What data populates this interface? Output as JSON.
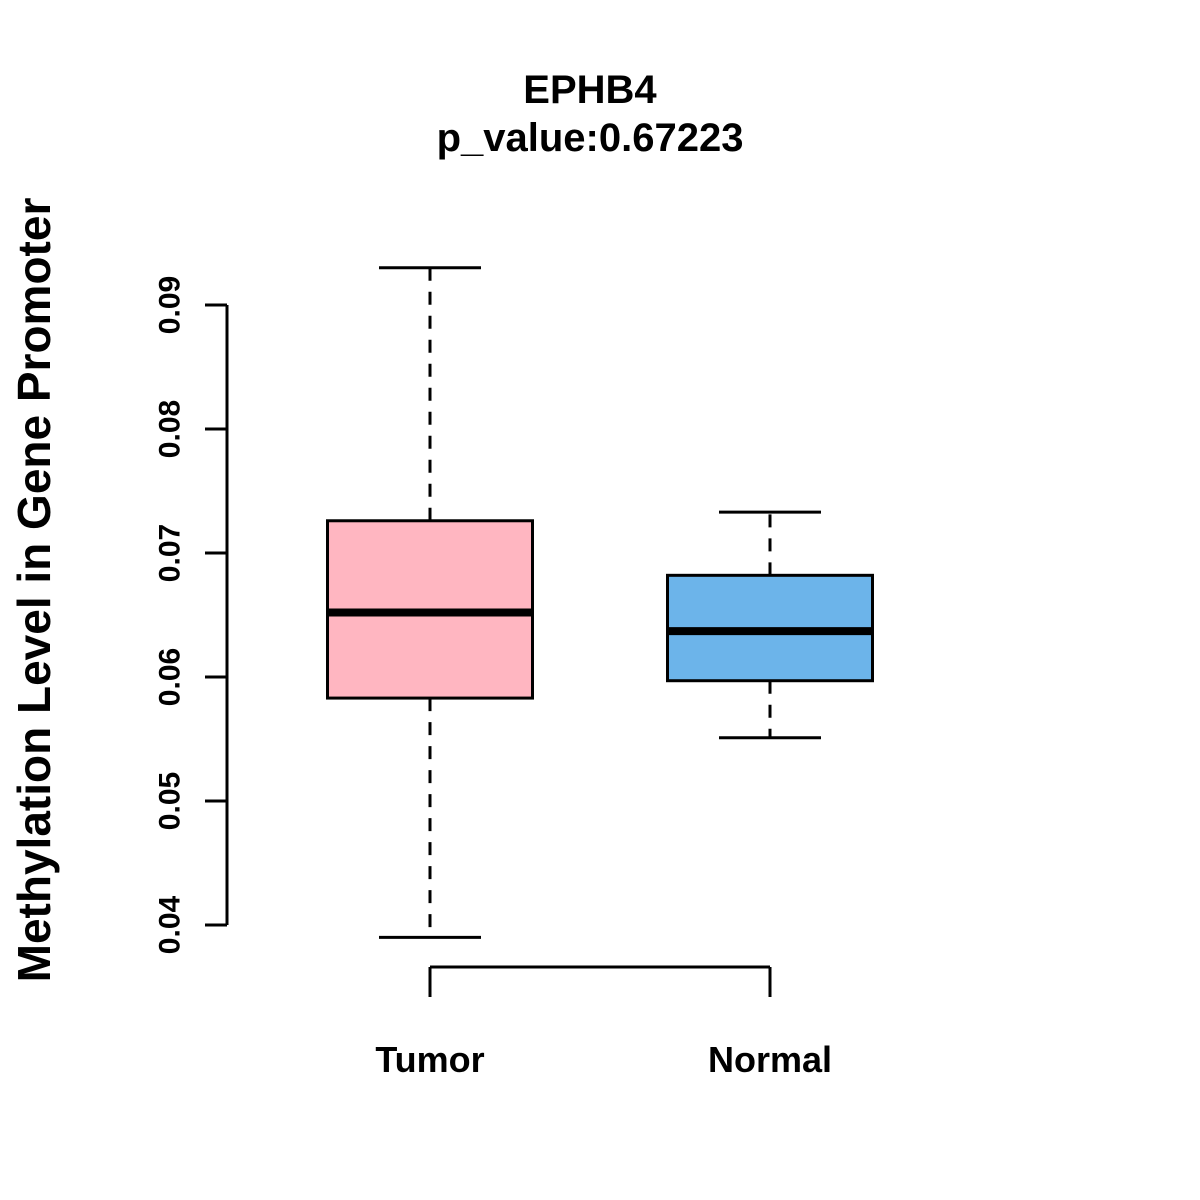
{
  "title": "EPHB4",
  "subtitle": "p_value:0.67223",
  "ylabel": "Methylation Level in Gene Promoter",
  "chart_data": {
    "type": "boxplot",
    "title": "EPHB4",
    "subtitle": "p_value:0.67223",
    "ylabel": "Methylation Level in Gene Promoter",
    "categories": [
      "Tumor",
      "Normal"
    ],
    "ylim": [
      0.04,
      0.09
    ],
    "yticks": [
      0.04,
      0.05,
      0.06,
      0.07,
      0.08,
      0.09
    ],
    "grid": false,
    "legend": "none",
    "series": [
      {
        "name": "Tumor",
        "box_color": "#FFB6C1",
        "whisker_low": 0.039,
        "q1": 0.0583,
        "median": 0.0652,
        "q3": 0.0726,
        "whisker_high": 0.093
      },
      {
        "name": "Normal",
        "box_color": "#6CB4EA",
        "whisker_low": 0.0551,
        "q1": 0.0597,
        "median": 0.0637,
        "q3": 0.0682,
        "whisker_high": 0.0733
      }
    ]
  }
}
